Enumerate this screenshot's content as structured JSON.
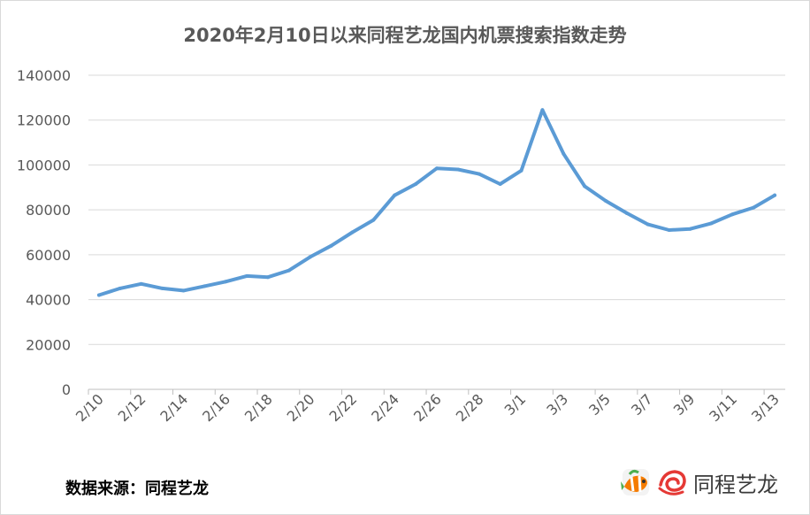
{
  "chart_data": {
    "type": "line",
    "title": "2020年2月10日以来同程艺龙国内机票搜索指数走势",
    "xlabel": "",
    "ylabel": "",
    "ylim": [
      0,
      140000
    ],
    "yticks": [
      0,
      20000,
      40000,
      60000,
      80000,
      100000,
      120000,
      140000
    ],
    "x": [
      "2/10",
      "2/11",
      "2/12",
      "2/13",
      "2/14",
      "2/15",
      "2/16",
      "2/17",
      "2/18",
      "2/19",
      "2/20",
      "2/21",
      "2/22",
      "2/23",
      "2/24",
      "2/25",
      "2/26",
      "2/27",
      "2/28",
      "2/29",
      "3/1",
      "3/2",
      "3/3",
      "3/4",
      "3/5",
      "3/6",
      "3/7",
      "3/8",
      "3/9",
      "3/10",
      "3/11",
      "3/12",
      "3/13"
    ],
    "xtick_labels": [
      "2/10",
      "2/12",
      "2/14",
      "2/16",
      "2/18",
      "2/20",
      "2/22",
      "2/24",
      "2/26",
      "2/28",
      "3/1",
      "3/3",
      "3/5",
      "3/7",
      "3/9",
      "3/11",
      "3/13"
    ],
    "series": [
      {
        "values": [
          42000,
          45000,
          47000,
          45000,
          44000,
          46000,
          48000,
          50500,
          50000,
          53000,
          59000,
          64000,
          70000,
          75500,
          86500,
          91500,
          98500,
          98000,
          96000,
          91500,
          97500,
          124500,
          105000,
          90500,
          84000,
          78500,
          73500,
          71000,
          71500,
          74000,
          78000,
          81000,
          86500
        ],
        "color": "#5B9BD5"
      }
    ],
    "grid": true,
    "legend": "none"
  },
  "footer": {
    "source_label": "数据来源：同程艺龙",
    "brand_name": "同程艺龙"
  },
  "colors": {
    "line": "#5B9BD5",
    "grid": "#d9d9d9",
    "axis": "#bfbfbf",
    "text": "#595959"
  },
  "icons": [
    "clownfish-logo-icon",
    "swirl-logo-icon"
  ]
}
